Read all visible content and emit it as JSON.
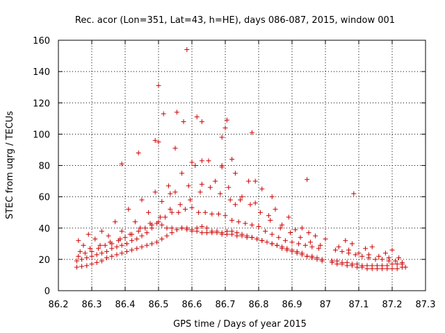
{
  "chart_data": {
    "type": "scatter",
    "title": "Rec. acor (Lon=351, Lat=43, h=HE), days 086-087, 2015, window 001",
    "xlabel": "GPS time / Days of year 2015",
    "ylabel": "STEC from uqrg / TECUs",
    "xlim": [
      86.2,
      87.3
    ],
    "ylim": [
      0,
      160
    ],
    "x_ticks": [
      86.2,
      86.3,
      86.4,
      86.5,
      86.6,
      86.7,
      86.8,
      86.9,
      87.0,
      87.1,
      87.2,
      87.3
    ],
    "x_tick_labels": [
      "86.2",
      "86.3",
      "86.4",
      "86.5",
      "86.6",
      "86.7",
      "86.8",
      "86.9",
      "87",
      "87.1",
      "87.2",
      "87.3"
    ],
    "y_ticks": [
      0,
      20,
      40,
      60,
      80,
      100,
      120,
      140,
      160
    ],
    "y_tick_labels": [
      "0",
      "20",
      "40",
      "60",
      "80",
      "100",
      "120",
      "140",
      "160"
    ],
    "grid": true,
    "marker": "+",
    "color": "#cc0000",
    "series": [
      {
        "name": "STEC",
        "x": [
          86.255,
          86.27,
          86.285,
          86.3,
          86.315,
          86.33,
          86.345,
          86.36,
          86.375,
          86.39,
          86.405,
          86.42,
          86.435,
          86.45,
          86.465,
          86.48,
          86.495,
          86.51,
          86.525,
          86.54,
          86.555,
          86.57,
          86.585,
          86.6,
          86.615,
          86.63,
          86.645,
          86.66,
          86.675,
          86.69,
          86.705,
          86.72,
          86.735,
          86.75,
          86.765,
          86.78,
          86.795,
          86.81,
          86.825,
          86.84,
          86.855,
          86.87,
          86.885,
          86.9,
          86.915,
          86.93,
          86.945,
          86.96,
          86.975,
          86.99,
          87.02,
          87.035,
          87.05,
          87.065,
          87.08,
          87.095,
          87.11,
          87.125,
          87.14,
          87.155,
          87.17,
          87.185,
          87.2,
          87.215,
          87.23,
          87.24,
          86.255,
          86.27,
          86.285,
          86.3,
          86.315,
          86.33,
          86.345,
          86.36,
          86.375,
          86.39,
          86.405,
          86.42,
          86.435,
          86.45,
          86.465,
          86.48,
          86.495,
          86.51,
          86.525,
          86.54,
          86.555,
          86.57,
          86.585,
          86.6,
          86.615,
          86.63,
          86.645,
          86.66,
          86.675,
          86.69,
          86.705,
          86.72,
          86.735,
          86.75,
          86.765,
          86.78,
          86.795,
          86.81,
          86.825,
          86.84,
          86.855,
          86.87,
          86.885,
          86.9,
          86.915,
          86.93,
          86.945,
          86.96,
          86.975,
          86.99,
          87.02,
          87.035,
          87.05,
          87.065,
          87.08,
          87.095,
          87.11,
          87.125,
          87.14,
          87.155,
          87.17,
          87.185,
          87.2,
          87.215,
          87.23,
          86.26,
          86.28,
          86.3,
          86.32,
          86.34,
          86.36,
          86.38,
          86.4,
          86.42,
          86.44,
          86.46,
          86.48,
          86.5,
          86.52,
          86.54,
          86.56,
          86.58,
          86.6,
          86.62,
          86.64,
          86.66,
          86.68,
          86.7,
          86.72,
          86.74,
          86.76,
          86.78,
          86.8,
          86.82,
          86.84,
          86.86,
          86.88,
          86.9,
          86.92,
          86.94,
          86.96,
          86.98,
          87.03,
          87.05,
          87.07,
          87.09,
          87.11,
          87.13,
          87.15,
          87.17,
          87.19,
          87.21,
          87.23,
          86.265,
          86.295,
          86.325,
          86.355,
          86.385,
          86.415,
          86.445,
          86.475,
          86.505,
          86.535,
          86.565,
          86.595,
          86.625,
          86.655,
          86.685,
          86.715,
          86.745,
          86.775,
          86.805,
          86.835,
          86.865,
          86.895,
          86.925,
          86.955,
          86.985,
          87.04,
          87.07,
          87.1,
          87.13,
          87.16,
          87.19,
          87.22,
          86.275,
          86.31,
          86.35,
          86.39,
          86.43,
          86.47,
          86.51,
          86.55,
          86.59,
          86.63,
          86.67,
          86.71,
          86.75,
          86.79,
          86.83,
          86.87,
          86.91,
          86.95,
          87.06,
          87.12,
          87.18,
          86.26,
          86.29,
          86.33,
          86.37,
          86.41,
          86.45,
          86.49,
          86.53,
          86.57,
          86.61,
          86.65,
          86.69,
          86.73,
          86.77,
          86.81,
          86.85,
          86.89,
          86.93,
          86.97,
          87.0,
          87.08,
          87.14,
          87.2,
          86.39,
          86.44,
          86.5,
          86.55,
          86.6,
          86.63,
          86.69,
          86.72,
          86.79,
          86.84,
          86.5,
          86.515,
          86.555,
          86.575,
          86.585,
          86.615,
          86.63,
          86.7,
          86.705,
          86.78,
          86.945,
          87.085,
          86.49,
          86.535,
          86.69,
          86.73
        ],
        "y": [
          15,
          15.5,
          16,
          17,
          18,
          19,
          21,
          22,
          23,
          24,
          25,
          26,
          27,
          28,
          29,
          30,
          31,
          33,
          35,
          37,
          39,
          40,
          40,
          39,
          38,
          37,
          37,
          37,
          37,
          36,
          36,
          36,
          35,
          35,
          34,
          34,
          33,
          32,
          31,
          30,
          29,
          28,
          27,
          26,
          25,
          24,
          22,
          21,
          20,
          19,
          18,
          17,
          17,
          16,
          16,
          15,
          15,
          14,
          14,
          14,
          14,
          14,
          14,
          14,
          15,
          15,
          19,
          20,
          21,
          22,
          23,
          24,
          25,
          27,
          28,
          29,
          30,
          32,
          33,
          35,
          37,
          40,
          43,
          42,
          40,
          40,
          39,
          40,
          39,
          38,
          40,
          41,
          40,
          38,
          38,
          37,
          38,
          38,
          37,
          36,
          35,
          34,
          33,
          32,
          31,
          30,
          29,
          27,
          26,
          25,
          24,
          23,
          22,
          22,
          21,
          20,
          19,
          19,
          18,
          18,
          17,
          17,
          16,
          16,
          16,
          16,
          16,
          16,
          17,
          17,
          17,
          22,
          24,
          25,
          27,
          29,
          30,
          32,
          34,
          36,
          38,
          40,
          42,
          44,
          47,
          50,
          50,
          52,
          53,
          50,
          50,
          49,
          49,
          48,
          45,
          44,
          43,
          42,
          41,
          38,
          36,
          34,
          32,
          31,
          30,
          29,
          28,
          27,
          26,
          25,
          24,
          23,
          22,
          21,
          20,
          20,
          19,
          19,
          18,
          25,
          27,
          29,
          31,
          33,
          36,
          40,
          43,
          47,
          52,
          55,
          58,
          63,
          66,
          62,
          58,
          58,
          55,
          50,
          45,
          40,
          37,
          34,
          31,
          29,
          28,
          26,
          24,
          23,
          22,
          21,
          21,
          29,
          33,
          35,
          38,
          44,
          50,
          57,
          63,
          67,
          68,
          70,
          66,
          60,
          56,
          48,
          42,
          39,
          37,
          32,
          27,
          24,
          32,
          36,
          38,
          44,
          52,
          58,
          63,
          67,
          75,
          80,
          83,
          80,
          75,
          70,
          65,
          52,
          47,
          40,
          35,
          33,
          30,
          28,
          26,
          81,
          88,
          95,
          91,
          82,
          83,
          79,
          84,
          70,
          60,
          131,
          113,
          114,
          108,
          154,
          111,
          108,
          104,
          109,
          101,
          71,
          62,
          96,
          62,
          98,
          55
        ]
      }
    ]
  }
}
